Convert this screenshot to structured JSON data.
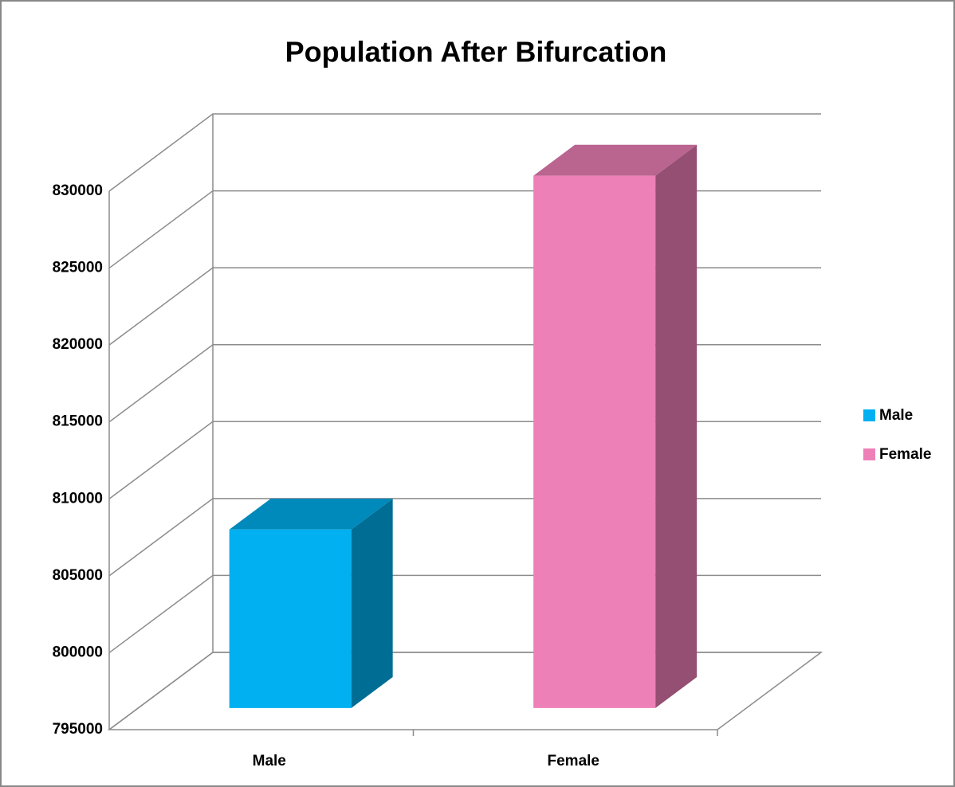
{
  "chart_data": {
    "type": "bar3d",
    "title": "Population After Bifurcation",
    "categories": [
      "Male",
      "Female"
    ],
    "series": [
      {
        "name": "Male",
        "color": "#00b0f0",
        "values": [
          806600,
          null
        ]
      },
      {
        "name": "Female",
        "color": "#ee80b8",
        "values": [
          null,
          829600
        ]
      }
    ],
    "ylim": [
      795000,
      830000
    ],
    "yticks": [
      795000,
      800000,
      805000,
      810000,
      815000,
      820000,
      825000,
      830000
    ],
    "grid": true,
    "legend": "right"
  }
}
